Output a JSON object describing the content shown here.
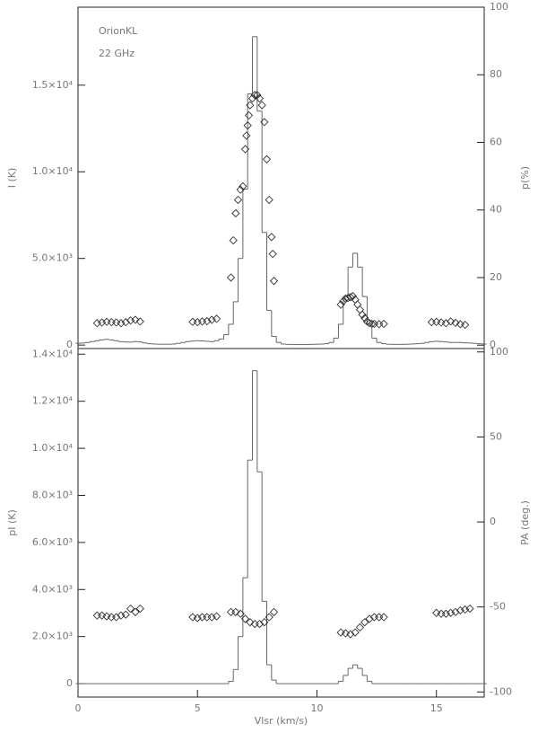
{
  "chart_data": [
    {
      "type": "line",
      "y_label": "I (K)",
      "y2_label": "p(%)",
      "annotations": [
        "OrionKL",
        "22 GHz"
      ],
      "xlim": [
        0,
        17
      ],
      "ylim": [
        -200,
        19500
      ],
      "y2lim": [
        -1,
        100
      ],
      "yticks": [
        0,
        {
          "value": 5000,
          "label": "5.0×10³"
        },
        {
          "value": 10000,
          "label": "1.0×10⁴"
        },
        {
          "value": 15000,
          "label": "1.5×10⁴"
        }
      ],
      "y2ticks": [
        0,
        20,
        40,
        60,
        80,
        100
      ],
      "series": [
        {
          "type": "step",
          "color": "#666666",
          "x": [
            0,
            0.2,
            0.4,
            0.6,
            0.8,
            1,
            1.2,
            1.4,
            1.6,
            1.8,
            2,
            2.2,
            2.4,
            2.6,
            2.8,
            3,
            3.2,
            3.4,
            3.6,
            3.8,
            4,
            4.2,
            4.4,
            4.6,
            4.8,
            5,
            5.2,
            5.4,
            5.6,
            5.8,
            6,
            6.2,
            6.4,
            6.6,
            6.8,
            7,
            7.2,
            7.4,
            7.6,
            7.8,
            8,
            8.2,
            8.4,
            8.6,
            8.8,
            9,
            9.2,
            9.4,
            9.6,
            9.8,
            10,
            10.2,
            10.4,
            10.6,
            10.8,
            11,
            11.2,
            11.4,
            11.6,
            11.8,
            12,
            12.2,
            12.4,
            12.6,
            12.8,
            13,
            13.2,
            13.4,
            13.6,
            13.8,
            14,
            14.2,
            14.4,
            14.6,
            14.8,
            15,
            15.2,
            15.4,
            15.6,
            15.8,
            16,
            16.2,
            16.4,
            16.6,
            16.8,
            17
          ],
          "values": [
            100,
            120,
            150,
            200,
            250,
            300,
            330,
            300,
            250,
            200,
            180,
            170,
            200,
            180,
            120,
            80,
            60,
            50,
            50,
            50,
            60,
            100,
            150,
            200,
            230,
            250,
            240,
            220,
            200,
            250,
            350,
            600,
            1200,
            2500,
            5000,
            9000,
            14500,
            17800,
            13500,
            6500,
            2000,
            500,
            150,
            60,
            40,
            30,
            30,
            30,
            30,
            40,
            50,
            60,
            80,
            150,
            400,
            1200,
            2800,
            4500,
            5300,
            4500,
            2800,
            1200,
            400,
            150,
            80,
            50,
            40,
            40,
            40,
            50,
            60,
            80,
            100,
            150,
            200,
            220,
            200,
            180,
            150,
            150,
            150,
            130,
            120,
            100,
            80,
            60
          ]
        },
        {
          "type": "scatter",
          "axis": "y2",
          "color": "#333333",
          "x": [
            0.8,
            1,
            1.2,
            1.4,
            1.6,
            1.8,
            2,
            2.2,
            2.4,
            2.6,
            4.8,
            5,
            5.2,
            5.4,
            5.6,
            5.8,
            6.4,
            6.5,
            6.6,
            6.7,
            6.8,
            6.9,
            7,
            7.05,
            7.1,
            7.15,
            7.2,
            7.3,
            7.4,
            7.5,
            7.6,
            7.7,
            7.8,
            7.9,
            8,
            8.1,
            8.15,
            8.2,
            11,
            11.1,
            11.2,
            11.3,
            11.4,
            11.5,
            11.6,
            11.7,
            11.8,
            11.9,
            12,
            12.1,
            12.2,
            12.3,
            12.4,
            12.6,
            12.8,
            14.8,
            15,
            15.2,
            15.4,
            15.6,
            15.8,
            16,
            16.2
          ],
          "values": [
            6.5,
            6.7,
            6.9,
            6.8,
            6.7,
            6.5,
            6.8,
            7.3,
            7.5,
            7,
            6.9,
            6.8,
            7,
            7.1,
            7.5,
            7.8,
            20,
            31,
            39,
            43,
            46,
            47,
            58,
            62,
            65,
            68,
            71,
            73,
            74,
            74,
            73,
            71,
            66,
            55,
            43,
            32,
            27,
            19,
            12,
            13,
            13.8,
            14,
            14.2,
            14.5,
            13.5,
            12,
            10.5,
            9,
            8,
            7,
            6.5,
            6.3,
            6.3,
            6.2,
            6.3,
            6.8,
            6.9,
            6.7,
            6.5,
            7,
            6.6,
            6.2,
            6
          ]
        }
      ]
    },
    {
      "type": "line",
      "y_label": "pI (K)",
      "y2_label": "PA (deg.)",
      "x_label": "Vlsr (km/s)",
      "xlim": [
        0,
        17
      ],
      "ylim": [
        -570,
        14240
      ],
      "y2lim": [
        -103,
        102
      ],
      "xticks": [
        0,
        5,
        10,
        15
      ],
      "yticks": [
        0,
        {
          "value": 2000,
          "label": "2.0×10³"
        },
        {
          "value": 4000,
          "label": "4.0×10³"
        },
        {
          "value": 6000,
          "label": "6.0×10³"
        },
        {
          "value": 8000,
          "label": "8.0×10³"
        },
        {
          "value": 10000,
          "label": "1.0×10⁴"
        },
        {
          "value": 12000,
          "label": "1.2×10⁴"
        },
        {
          "value": 14000,
          "label": "1.4×10⁴"
        }
      ],
      "y2ticks": [
        -100,
        -50,
        0,
        50,
        100
      ],
      "series": [
        {
          "type": "step",
          "color": "#666666",
          "x": [
            0,
            0.2,
            0.4,
            0.6,
            0.8,
            1,
            1.2,
            1.4,
            1.6,
            1.8,
            2,
            2.2,
            2.4,
            2.6,
            2.8,
            3,
            3.2,
            3.4,
            3.6,
            3.8,
            4,
            4.2,
            4.4,
            4.6,
            4.8,
            5,
            5.2,
            5.4,
            5.6,
            5.8,
            6,
            6.2,
            6.4,
            6.6,
            6.8,
            7,
            7.2,
            7.4,
            7.6,
            7.8,
            8,
            8.2,
            8.4,
            8.6,
            8.8,
            9,
            9.2,
            9.4,
            9.6,
            9.8,
            10,
            10.2,
            10.4,
            10.6,
            10.8,
            11,
            11.2,
            11.4,
            11.6,
            11.8,
            12,
            12.2,
            12.4,
            12.6,
            12.8,
            13,
            13.2,
            13.4,
            13.6,
            13.8,
            14,
            14.2,
            14.4,
            14.6,
            14.8,
            15,
            15.2,
            15.4,
            15.6,
            15.8,
            16,
            16.2,
            16.4,
            16.6,
            16.8,
            17
          ],
          "values": [
            0,
            0,
            0,
            0,
            0,
            0,
            0,
            0,
            0,
            0,
            0,
            0,
            0,
            0,
            0,
            0,
            0,
            0,
            0,
            0,
            0,
            0,
            0,
            0,
            0,
            0,
            0,
            0,
            0,
            0,
            0,
            0,
            100,
            600,
            2000,
            4500,
            9500,
            13300,
            9000,
            3500,
            800,
            150,
            0,
            0,
            0,
            0,
            0,
            0,
            0,
            0,
            0,
            0,
            0,
            0,
            0,
            100,
            350,
            650,
            800,
            650,
            350,
            100,
            0,
            0,
            0,
            0,
            0,
            0,
            0,
            0,
            0,
            0,
            0,
            0,
            0,
            0,
            0,
            0,
            0,
            0,
            0,
            0,
            0,
            0,
            0,
            0
          ]
        },
        {
          "type": "scatter",
          "axis": "y2",
          "color": "#333333",
          "x": [
            0.8,
            1,
            1.2,
            1.4,
            1.6,
            1.8,
            2,
            2.2,
            2.4,
            2.6,
            4.8,
            5,
            5.2,
            5.4,
            5.6,
            5.8,
            6.4,
            6.6,
            6.8,
            7,
            7.2,
            7.4,
            7.6,
            7.8,
            8,
            8.2,
            11,
            11.2,
            11.4,
            11.6,
            11.8,
            12,
            12.2,
            12.4,
            12.6,
            12.8,
            15,
            15.2,
            15.4,
            15.6,
            15.8,
            16,
            16.2,
            16.4
          ],
          "values": [
            -55,
            -55,
            -55.5,
            -56,
            -56,
            -55,
            -54.5,
            -51,
            -53,
            -51,
            -56,
            -56.5,
            -56,
            -56,
            -56,
            -55.5,
            -53,
            -53,
            -54,
            -57,
            -59,
            -60,
            -60,
            -59,
            -56,
            -53,
            -65,
            -65.5,
            -66,
            -65,
            -62,
            -59,
            -57,
            -56,
            -56,
            -56,
            -53.5,
            -54,
            -54,
            -53.5,
            -53,
            -52,
            -51.5,
            -51
          ]
        }
      ]
    }
  ]
}
